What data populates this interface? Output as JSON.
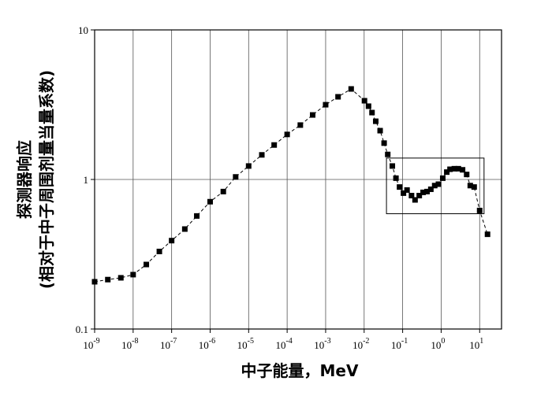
{
  "chart_data": {
    "type": "scatter",
    "xlabel": "中子能量，MeV",
    "ylabel": [
      "探测器响应",
      "(相对于中子周围剂量当量系数)"
    ],
    "xscale": "log",
    "yscale": "log",
    "xlim": [
      1e-09,
      37
    ],
    "ylim": [
      0.1,
      10
    ],
    "xticks": [
      {
        "value": 1e-09,
        "label": "10",
        "exponent": "-9"
      },
      {
        "value": 1e-08,
        "label": "10",
        "exponent": "-8"
      },
      {
        "value": 1e-07,
        "label": "10",
        "exponent": "-7"
      },
      {
        "value": 1e-06,
        "label": "10",
        "exponent": "-6"
      },
      {
        "value": 1e-05,
        "label": "10",
        "exponent": "-5"
      },
      {
        "value": 0.0001,
        "label": "10",
        "exponent": "-4"
      },
      {
        "value": 0.001,
        "label": "10",
        "exponent": "-3"
      },
      {
        "value": 0.01,
        "label": "10",
        "exponent": "-2"
      },
      {
        "value": 0.1,
        "label": "10",
        "exponent": "-1"
      },
      {
        "value": 1,
        "label": "10",
        "exponent": "0"
      },
      {
        "value": 10,
        "label": "10",
        "exponent": "1"
      }
    ],
    "yticks": [
      0.1,
      1,
      10
    ],
    "xgrid": true,
    "hlines": [
      1
    ],
    "box": {
      "x": [
        0.038,
        13
      ],
      "y": [
        0.59,
        1.39
      ]
    },
    "series": [
      {
        "color": "#000000",
        "line": "dashed",
        "x": [
          1e-09,
          2.2e-09,
          4.8e-09,
          1e-08,
          2.2e-08,
          4.8e-08,
          1e-07,
          2.2e-07,
          4.5e-07,
          1e-06,
          2.2e-06,
          4.6e-06,
          1e-05,
          2.2e-05,
          4.6e-05,
          0.0001,
          0.00022,
          0.00046,
          0.001,
          0.0021,
          0.0046,
          0.0102,
          0.013,
          0.016,
          0.02,
          0.026,
          0.033,
          0.041,
          0.054,
          0.067,
          0.083,
          0.105,
          0.13,
          0.17,
          0.21,
          0.27,
          0.34,
          0.43,
          0.54,
          0.68,
          0.85,
          1.1,
          1.4,
          1.7,
          2.2,
          2.8,
          3.6,
          4.6,
          5.7,
          7.2,
          10,
          16
        ],
        "values": [
          0.207,
          0.214,
          0.22,
          0.231,
          0.27,
          0.33,
          0.39,
          0.466,
          0.57,
          0.71,
          0.83,
          1.04,
          1.23,
          1.46,
          1.7,
          2.0,
          2.31,
          2.7,
          3.16,
          3.57,
          4.03,
          3.36,
          3.09,
          2.8,
          2.45,
          2.12,
          1.75,
          1.47,
          1.23,
          1.02,
          0.89,
          0.81,
          0.85,
          0.78,
          0.73,
          0.78,
          0.82,
          0.83,
          0.86,
          0.91,
          0.93,
          1.02,
          1.12,
          1.17,
          1.18,
          1.18,
          1.16,
          1.08,
          0.91,
          0.89,
          0.62,
          0.43
        ]
      }
    ]
  }
}
